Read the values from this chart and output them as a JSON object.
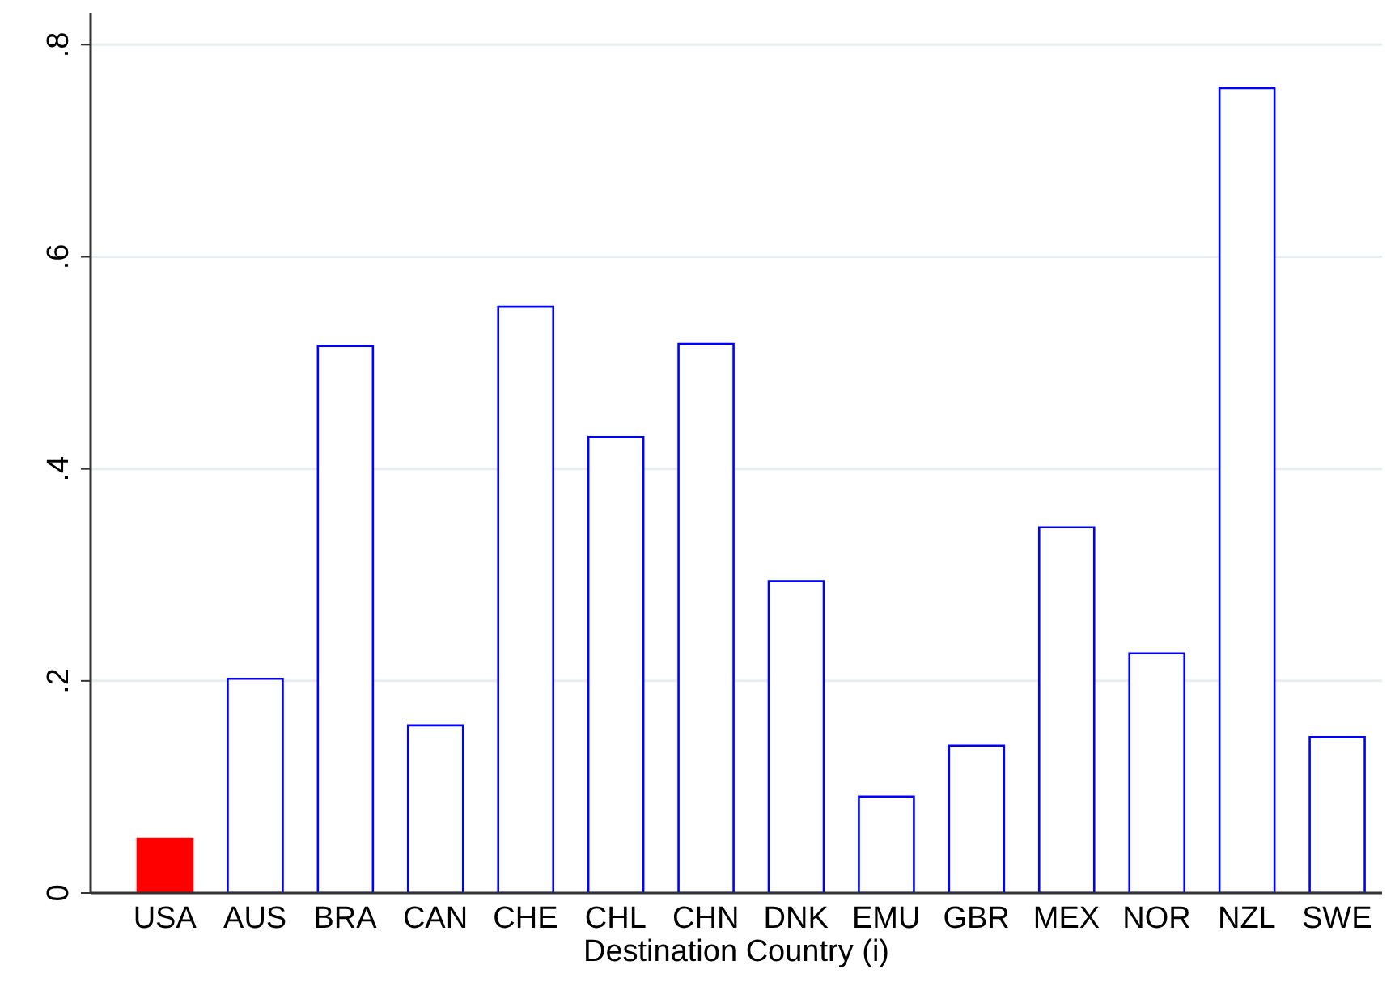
{
  "chart_data": {
    "type": "bar",
    "xlabel": "Destination Country (i)",
    "categories": [
      "USA",
      "AUS",
      "BRA",
      "CAN",
      "CHE",
      "CHL",
      "CHN",
      "DNK",
      "EMU",
      "GBR",
      "MEX",
      "NOR",
      "NZL",
      "SWE"
    ],
    "values": [
      0.051,
      0.202,
      0.516,
      0.158,
      0.553,
      0.43,
      0.518,
      0.294,
      0.091,
      0.139,
      0.345,
      0.226,
      0.759,
      0.147
    ],
    "colors": [
      "#ff0000",
      "#0000ff",
      "#0000ff",
      "#0000ff",
      "#0000ff",
      "#0000ff",
      "#0000ff",
      "#0000ff",
      "#0000ff",
      "#0000ff",
      "#0000ff",
      "#0000ff",
      "#0000ff",
      "#0000ff"
    ],
    "ylim": [
      0,
      0.83
    ],
    "yticks": [
      0,
      {
        "value": 0.2,
        "label": ".2"
      },
      {
        "value": 0.4,
        "label": ".4"
      },
      {
        "value": 0.6,
        "label": ".6"
      },
      {
        "value": 0.8,
        "label": ".8"
      }
    ],
    "grid": "y"
  }
}
